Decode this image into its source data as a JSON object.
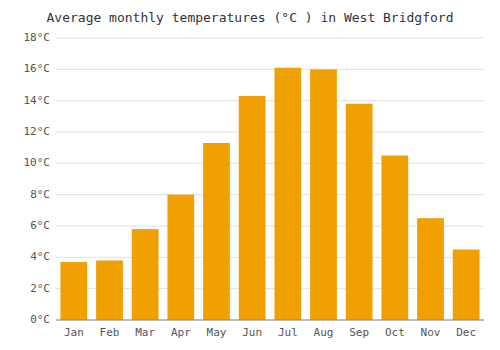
{
  "chart_data": {
    "type": "bar",
    "title": "Average monthly temperatures (°C ) in West Bridgford",
    "categories": [
      "Jan",
      "Feb",
      "Mar",
      "Apr",
      "May",
      "Jun",
      "Jul",
      "Aug",
      "Sep",
      "Oct",
      "Nov",
      "Dec"
    ],
    "values": [
      3.7,
      3.8,
      5.8,
      8.0,
      11.3,
      14.3,
      16.1,
      16.0,
      13.8,
      10.5,
      6.5,
      4.5
    ],
    "color": "#F0A000",
    "ylim": [
      0,
      18
    ],
    "yticks": [
      {
        "value": 0,
        "label": "0°C"
      },
      {
        "value": 2,
        "label": "2°C"
      },
      {
        "value": 4,
        "label": "4°C"
      },
      {
        "value": 6,
        "label": "6°C"
      },
      {
        "value": 8,
        "label": "8°C"
      },
      {
        "value": 10,
        "label": "10°C"
      },
      {
        "value": 12,
        "label": "12°C"
      },
      {
        "value": 14,
        "label": "14°C"
      },
      {
        "value": 16,
        "label": "16°C"
      },
      {
        "value": 18,
        "label": "18°C"
      }
    ],
    "grid": true
  }
}
